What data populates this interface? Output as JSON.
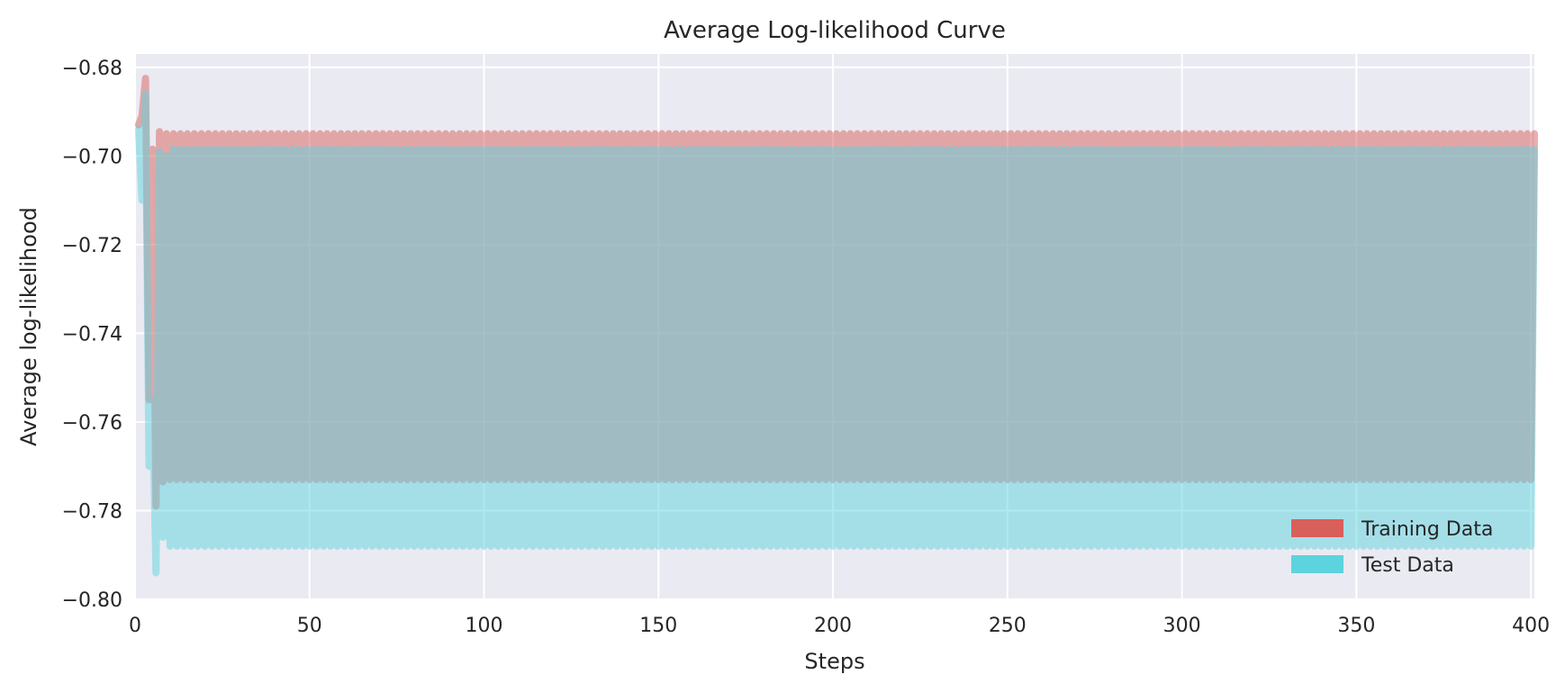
{
  "chart_data": {
    "type": "line",
    "title": "Average Log-likelihood Curve",
    "xlabel": "Steps",
    "ylabel": "Average log-likelihood",
    "xlim": [
      0,
      401
    ],
    "ylim": [
      -0.8,
      -0.677
    ],
    "xticks": [
      0,
      50,
      100,
      150,
      200,
      250,
      300,
      350,
      400
    ],
    "yticks": [
      -0.68,
      -0.7,
      -0.72,
      -0.74,
      -0.76,
      -0.78,
      -0.8
    ],
    "ytick_labels": [
      "−0.68",
      "−0.70",
      "−0.72",
      "−0.74",
      "−0.76",
      "−0.78",
      "−0.80"
    ],
    "grid": true,
    "background": "#eaeaf2",
    "legend": {
      "position": "lower-right",
      "entries": [
        "Training Data",
        "Test Data"
      ]
    },
    "series": [
      {
        "name": "Training Data",
        "color": "#d9605a",
        "pattern": "alternating",
        "x_range": [
          1,
          401
        ],
        "initial_values": [
          -0.693,
          -0.691,
          -0.6825,
          -0.755,
          -0.6985,
          -0.779,
          -0.6945,
          -0.7735,
          -0.695,
          -0.773
        ],
        "steady_high": -0.695,
        "steady_low": -0.773
      },
      {
        "name": "Test Data",
        "color": "#5dd3de",
        "pattern": "alternating",
        "x_range": [
          1,
          401
        ],
        "initial_values": [
          -0.694,
          -0.71,
          -0.686,
          -0.77,
          -0.755,
          -0.794,
          -0.699,
          -0.786,
          -0.7,
          -0.788
        ],
        "steady_high": -0.6985,
        "steady_low": -0.788
      }
    ]
  }
}
